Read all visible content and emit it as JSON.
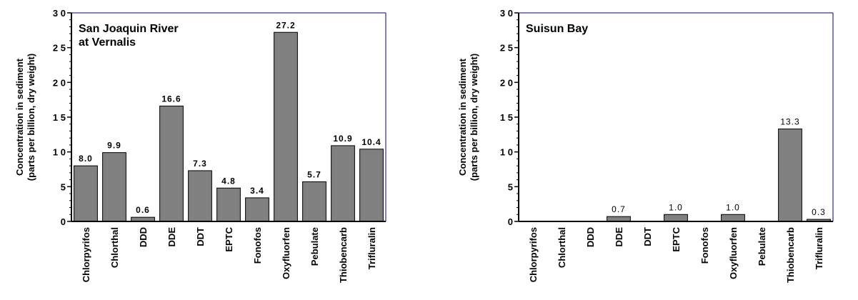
{
  "colors": {
    "bar": "#808080",
    "bar_stroke": "#000000",
    "frame": "#000080",
    "axis": "#000000"
  },
  "chart_data": [
    {
      "type": "bar",
      "title": "San Joaquin River\nat Vernalis",
      "ylabel": "Concentration in sediment\n(parts per billion, dry weight)",
      "xlabel": "",
      "ylim": [
        0,
        30
      ],
      "yticks": [
        {
          "value": 0,
          "label": "0"
        },
        {
          "value": 5,
          "label": "5"
        },
        {
          "value": 10,
          "label": "1 0"
        },
        {
          "value": 15,
          "label": "1 5"
        },
        {
          "value": 20,
          "label": "2 0"
        },
        {
          "value": 25,
          "label": "2 5"
        },
        {
          "value": 30,
          "label": "3 0"
        }
      ],
      "data_label_style": "bold",
      "categories": [
        "Chlorpyrifos",
        "Chlorthal",
        "DDD",
        "DDE",
        "DDT",
        "EPTC",
        "Fonofos",
        "Oxyfluorfen",
        "Pebulate",
        "Thiobencarb",
        "Trifluralin"
      ],
      "values": [
        8.0,
        9.9,
        0.6,
        16.6,
        7.3,
        4.8,
        3.4,
        27.2,
        5.7,
        10.9,
        10.4
      ],
      "data_labels": [
        "8.0",
        "9.9",
        "0.6",
        "16.6",
        "7.3",
        "4.8",
        "3.4",
        "27.2",
        "5.7",
        "10.9",
        "10.4"
      ]
    },
    {
      "type": "bar",
      "title": "Suisun Bay",
      "ylabel": "Concentration in sediment\n(parts per billion, dry weight)",
      "xlabel": "",
      "ylim": [
        0,
        30
      ],
      "yticks": [
        {
          "value": 0,
          "label": "0"
        },
        {
          "value": 5,
          "label": "5"
        },
        {
          "value": 10,
          "label": "1 0"
        },
        {
          "value": 15,
          "label": "1 5"
        },
        {
          "value": 20,
          "label": "2 0"
        },
        {
          "value": 25,
          "label": "2 5"
        },
        {
          "value": 30,
          "label": "3 0"
        }
      ],
      "data_label_style": "normal",
      "categories": [
        "Chlorpyrifos",
        "Chlorthal",
        "DDD",
        "DDE",
        "DDT",
        "EPTC",
        "Fonofos",
        "Oxyfluorfen",
        "Pebulate",
        "Thiobencarb",
        "Trifluralin"
      ],
      "values": [
        0,
        0,
        0,
        0.7,
        0,
        1.0,
        0,
        1.0,
        0,
        13.3,
        0.3
      ],
      "data_labels": [
        "",
        "",
        "",
        "0.7",
        "",
        "1.0",
        "",
        "1.0",
        "",
        "13.3",
        "0.3"
      ]
    }
  ]
}
